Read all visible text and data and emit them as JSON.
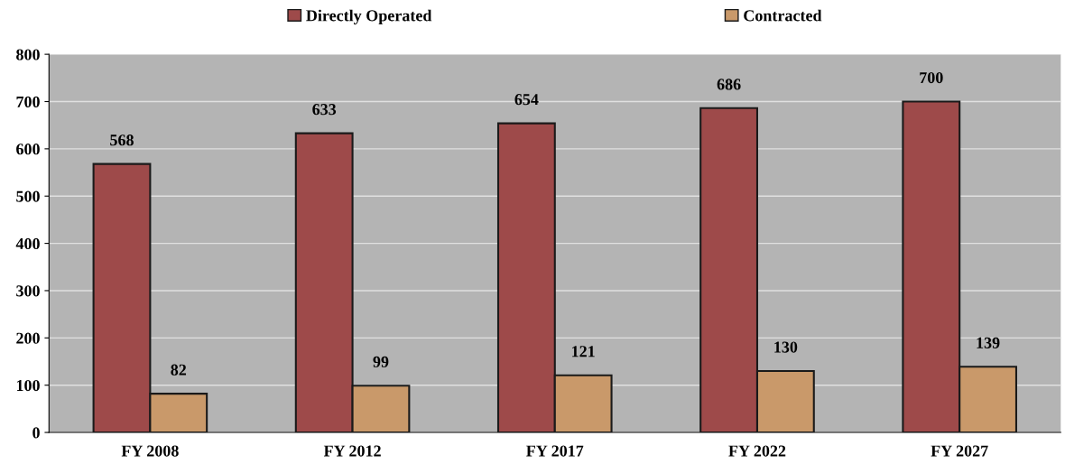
{
  "chart_data": {
    "type": "bar",
    "categories": [
      "FY 2008",
      "FY 2012",
      "FY 2017",
      "FY 2022",
      "FY 2027"
    ],
    "series": [
      {
        "name": "Directly Operated",
        "color": "#9e4a4a",
        "values": [
          568,
          633,
          654,
          686,
          700
        ]
      },
      {
        "name": "Contracted",
        "color": "#c9996a",
        "values": [
          82,
          99,
          121,
          130,
          139
        ]
      }
    ],
    "ylim": [
      0,
      800
    ],
    "yticks": [
      0,
      100,
      200,
      300,
      400,
      500,
      600,
      700,
      800
    ],
    "grid": "y",
    "legend": "top",
    "data_labels": true
  }
}
